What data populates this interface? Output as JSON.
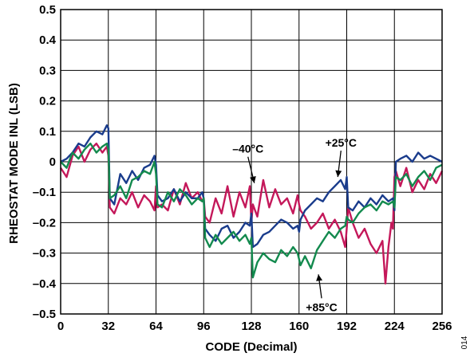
{
  "chart_data": {
    "type": "line",
    "xlabel": "CODE (Decimal)",
    "ylabel": "RHEOSTAT MODE INL (LSB)",
    "xlim": [
      0,
      256
    ],
    "ylim": [
      -0.5,
      0.5
    ],
    "x_ticks": [
      0,
      32,
      64,
      96,
      128,
      160,
      192,
      224,
      256
    ],
    "y_ticks": [
      "0.5",
      "0.4",
      "0.3",
      "0.2",
      "0.1",
      "0",
      "–0.1",
      "–0.2",
      "–0.3",
      "–0.4",
      "–0.5"
    ],
    "grid": true,
    "figure_id": "014",
    "annotations": [
      {
        "text": "–40°C",
        "series": "-40C",
        "x": 130,
        "y": -0.07
      },
      {
        "text": "+25°C",
        "series": "+25C",
        "x": 186,
        "y": -0.05
      },
      {
        "text": "+85°C",
        "series": "+85C",
        "x": 173,
        "y": -0.37
      }
    ],
    "colors": {
      "-40C": "#c4185a",
      "+25C": "#1a3c8c",
      "+85C": "#138a4e"
    },
    "series": [
      {
        "key": "-40C",
        "x": [
          0,
          4,
          8,
          12,
          16,
          20,
          24,
          28,
          31,
          32,
          33,
          36,
          40,
          44,
          48,
          52,
          56,
          60,
          63,
          64,
          65,
          68,
          72,
          76,
          80,
          84,
          88,
          92,
          95,
          96,
          97,
          100,
          104,
          108,
          112,
          116,
          120,
          124,
          127,
          128,
          129,
          132,
          136,
          140,
          144,
          148,
          152,
          156,
          159,
          160,
          161,
          164,
          168,
          172,
          176,
          180,
          184,
          188,
          191,
          192,
          193,
          196,
          200,
          204,
          208,
          212,
          216,
          218,
          220,
          222,
          223,
          224,
          225,
          228,
          232,
          236,
          240,
          244,
          248,
          252,
          256
        ],
        "y": [
          -0.02,
          -0.05,
          0.02,
          0.05,
          0.0,
          0.04,
          0.06,
          0.03,
          0.05,
          0.02,
          -0.15,
          -0.17,
          -0.12,
          -0.14,
          -0.1,
          -0.15,
          -0.11,
          -0.13,
          -0.16,
          -0.08,
          -0.15,
          -0.14,
          -0.16,
          -0.09,
          -0.14,
          -0.07,
          -0.12,
          -0.1,
          -0.13,
          -0.12,
          -0.18,
          -0.2,
          -0.12,
          -0.17,
          -0.08,
          -0.18,
          -0.1,
          -0.15,
          -0.08,
          -0.2,
          -0.14,
          -0.18,
          -0.06,
          -0.15,
          -0.09,
          -0.14,
          -0.12,
          -0.17,
          -0.11,
          -0.14,
          -0.16,
          -0.18,
          -0.22,
          -0.2,
          -0.17,
          -0.22,
          -0.19,
          -0.23,
          -0.28,
          -0.22,
          -0.15,
          -0.2,
          -0.25,
          -0.22,
          -0.27,
          -0.3,
          -0.26,
          -0.4,
          -0.28,
          -0.2,
          -0.22,
          -0.05,
          -0.03,
          -0.08,
          -0.02,
          -0.1,
          -0.06,
          -0.09,
          -0.04,
          -0.07,
          -0.03
        ]
      },
      {
        "key": "+25C",
        "x": [
          0,
          4,
          8,
          12,
          16,
          20,
          24,
          28,
          31,
          32,
          33,
          36,
          40,
          44,
          48,
          52,
          56,
          60,
          63,
          64,
          65,
          68,
          72,
          76,
          80,
          84,
          88,
          92,
          95,
          96,
          97,
          100,
          104,
          108,
          112,
          116,
          120,
          124,
          127,
          128,
          129,
          132,
          136,
          140,
          144,
          148,
          152,
          156,
          159,
          160,
          161,
          164,
          168,
          172,
          176,
          180,
          184,
          188,
          191,
          192,
          193,
          196,
          200,
          204,
          208,
          212,
          216,
          220,
          223,
          224,
          225,
          228,
          232,
          236,
          240,
          244,
          248,
          252,
          256
        ],
        "y": [
          0.0,
          0.01,
          0.03,
          0.06,
          0.05,
          0.08,
          0.1,
          0.09,
          0.12,
          0.11,
          -0.12,
          -0.14,
          -0.04,
          -0.07,
          -0.03,
          -0.06,
          -0.02,
          -0.01,
          0.02,
          -0.01,
          -0.11,
          -0.13,
          -0.12,
          -0.09,
          -0.13,
          -0.1,
          -0.12,
          -0.12,
          -0.1,
          -0.12,
          -0.22,
          -0.24,
          -0.26,
          -0.22,
          -0.21,
          -0.25,
          -0.23,
          -0.2,
          -0.21,
          -0.17,
          -0.28,
          -0.27,
          -0.24,
          -0.23,
          -0.21,
          -0.19,
          -0.2,
          -0.22,
          -0.21,
          -0.23,
          -0.19,
          -0.16,
          -0.14,
          -0.12,
          -0.13,
          -0.1,
          -0.08,
          -0.06,
          -0.09,
          -0.05,
          -0.15,
          -0.16,
          -0.13,
          -0.15,
          -0.12,
          -0.14,
          -0.11,
          -0.13,
          -0.12,
          -0.16,
          0.0,
          0.01,
          0.02,
          0.0,
          0.03,
          0.01,
          0.02,
          0.01,
          0.0
        ]
      },
      {
        "key": "+85C",
        "x": [
          0,
          4,
          8,
          12,
          16,
          20,
          24,
          28,
          31,
          32,
          33,
          36,
          40,
          44,
          48,
          52,
          56,
          60,
          63,
          64,
          65,
          68,
          72,
          76,
          80,
          84,
          88,
          92,
          95,
          96,
          97,
          100,
          104,
          108,
          112,
          116,
          120,
          124,
          127,
          128,
          129,
          132,
          136,
          140,
          144,
          148,
          152,
          156,
          159,
          160,
          161,
          164,
          168,
          172,
          176,
          180,
          184,
          188,
          191,
          192,
          193,
          196,
          200,
          204,
          208,
          212,
          216,
          220,
          223,
          224,
          225,
          228,
          232,
          236,
          240,
          244,
          248,
          252,
          256
        ],
        "y": [
          0.0,
          -0.02,
          0.03,
          0.01,
          0.04,
          0.06,
          0.03,
          0.05,
          0.06,
          0.04,
          -0.12,
          -0.11,
          -0.08,
          -0.12,
          -0.06,
          -0.05,
          -0.03,
          -0.04,
          0.0,
          -0.04,
          -0.14,
          -0.15,
          -0.1,
          -0.13,
          -0.09,
          -0.11,
          -0.14,
          -0.12,
          -0.13,
          -0.12,
          -0.25,
          -0.28,
          -0.24,
          -0.27,
          -0.25,
          -0.23,
          -0.26,
          -0.24,
          -0.27,
          -0.25,
          -0.38,
          -0.33,
          -0.3,
          -0.32,
          -0.33,
          -0.29,
          -0.31,
          -0.28,
          -0.3,
          -0.32,
          -0.34,
          -0.31,
          -0.35,
          -0.29,
          -0.26,
          -0.23,
          -0.25,
          -0.22,
          -0.21,
          -0.18,
          -0.19,
          -0.2,
          -0.17,
          -0.15,
          -0.14,
          -0.16,
          -0.13,
          -0.14,
          -0.13,
          -0.15,
          -0.05,
          -0.06,
          -0.04,
          -0.08,
          -0.05,
          -0.03,
          -0.06,
          -0.02,
          -0.01
        ]
      }
    ]
  }
}
